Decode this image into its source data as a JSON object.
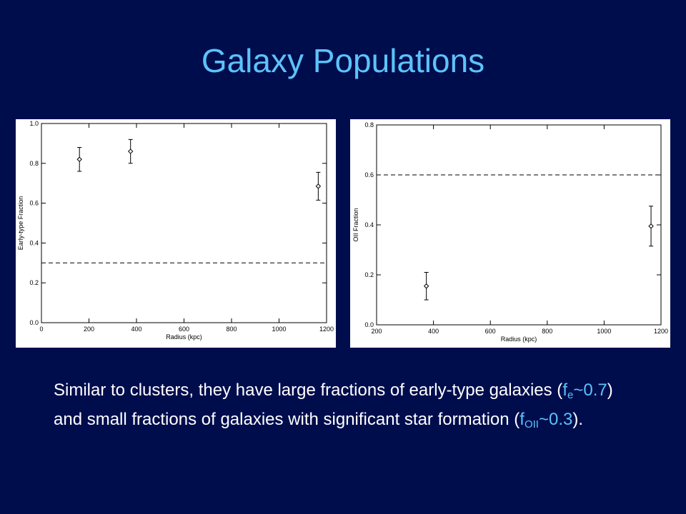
{
  "slide": {
    "title": "Galaxy Populations",
    "body": [
      "Similar to clusters, they have large fractions of early-type galaxies (",
      "f",
      "e",
      "~0.7",
      ") and small fractions of galaxies with significant star formation (",
      "f",
      "OII",
      "~0.3",
      ")."
    ]
  },
  "chart_data": [
    {
      "type": "scatter",
      "xlabel": "Radius (kpc)",
      "ylabel": "Early-type Fraction",
      "xlim": [
        0,
        1200
      ],
      "ylim": [
        0,
        1.0
      ],
      "xticks": [
        0,
        200,
        400,
        600,
        800,
        1000,
        1200
      ],
      "yticks": [
        {
          "value": 0,
          "label": "0.0"
        },
        0.2,
        0.4,
        0.6,
        0.8,
        {
          "value": 1,
          "label": "1.0"
        }
      ],
      "hline": 0.3,
      "color": "#000000",
      "series": [
        {
          "x": [
            160,
            375,
            1165
          ],
          "values": [
            0.82,
            0.86,
            0.685
          ],
          "errors": [
            0.06,
            0.06,
            0.07
          ]
        }
      ]
    },
    {
      "type": "scatter",
      "xlabel": "Radius (kpc)",
      "ylabel": "OII Fraction",
      "xlim": [
        200,
        1200
      ],
      "ylim": [
        0,
        0.8
      ],
      "xticks": [
        200,
        400,
        600,
        800,
        1000,
        1200
      ],
      "yticks": [
        {
          "value": 0,
          "label": "0.0"
        },
        0.2,
        0.4,
        0.6,
        0.8
      ],
      "hline": 0.6,
      "color": "#000000",
      "series": [
        {
          "x": [
            375,
            1165
          ],
          "values": [
            0.155,
            0.395
          ],
          "errors": [
            0.055,
            0.08
          ]
        }
      ]
    }
  ]
}
